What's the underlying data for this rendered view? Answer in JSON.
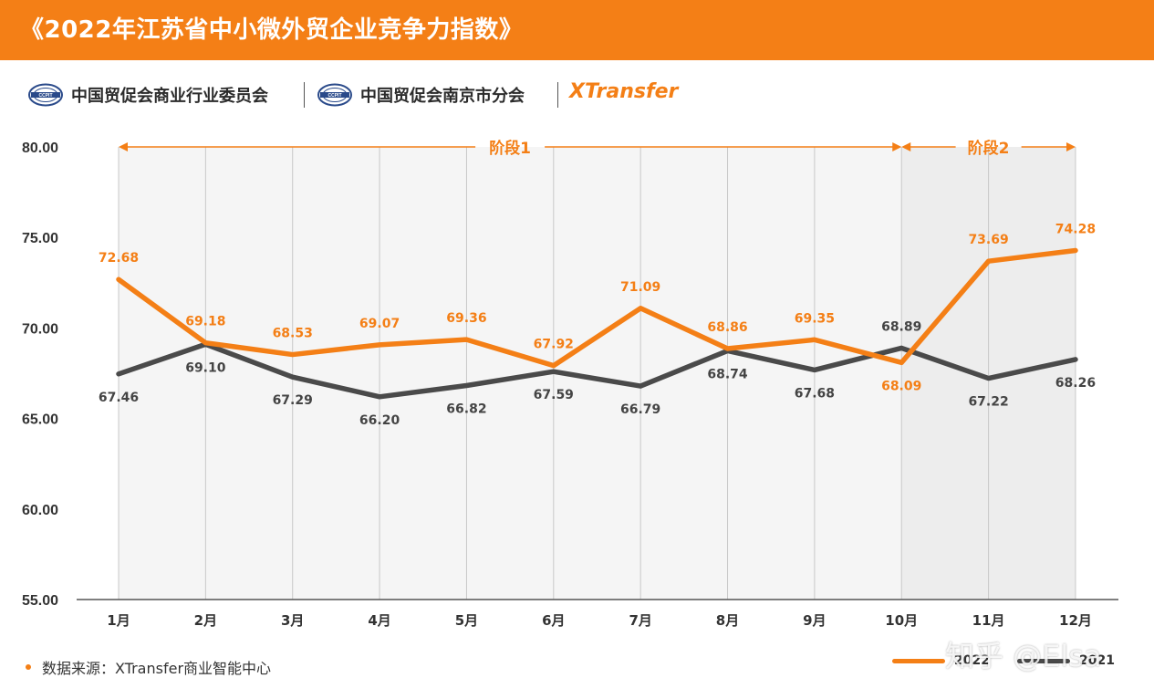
{
  "header": {
    "title": "《2022年江苏省中小微外贸企业竞争力指数》"
  },
  "orgs": [
    {
      "icon": "ccpit-logo-icon",
      "name": "中国贸促会商业行业委员会"
    },
    {
      "icon": "ccpit-logo-icon",
      "name": "中国贸促会南京市分会"
    }
  ],
  "brand": "XTransfer",
  "footer": {
    "source": "数据来源：XTransfer商业智能中心"
  },
  "watermark": "知乎 @Elsa",
  "colors": {
    "header_bg": "#f47f16",
    "series_2022": "#f47f16",
    "series_2021": "#4a4a4a",
    "stage_shade": "#f2f2f2"
  },
  "chart_data": {
    "type": "line",
    "categories": [
      "1月",
      "2月",
      "3月",
      "4月",
      "5月",
      "6月",
      "7月",
      "8月",
      "9月",
      "10月",
      "11月",
      "12月"
    ],
    "ylim": [
      55,
      80
    ],
    "yticks": [
      "80.00",
      "75.00",
      "70.00",
      "65.00",
      "60.00",
      "55.00"
    ],
    "stages": [
      {
        "label": "阶段1",
        "from": "1月",
        "to": "10月"
      },
      {
        "label": "阶段2",
        "from": "10月",
        "to": "12月"
      }
    ],
    "series": [
      {
        "name": "2022",
        "values": [
          72.68,
          69.18,
          68.53,
          69.07,
          69.36,
          67.92,
          71.09,
          68.86,
          69.35,
          68.09,
          73.69,
          74.28
        ]
      },
      {
        "name": "2021",
        "values": [
          67.46,
          69.1,
          67.29,
          66.2,
          66.82,
          67.59,
          66.79,
          68.74,
          67.68,
          68.89,
          67.22,
          68.26
        ]
      }
    ]
  }
}
